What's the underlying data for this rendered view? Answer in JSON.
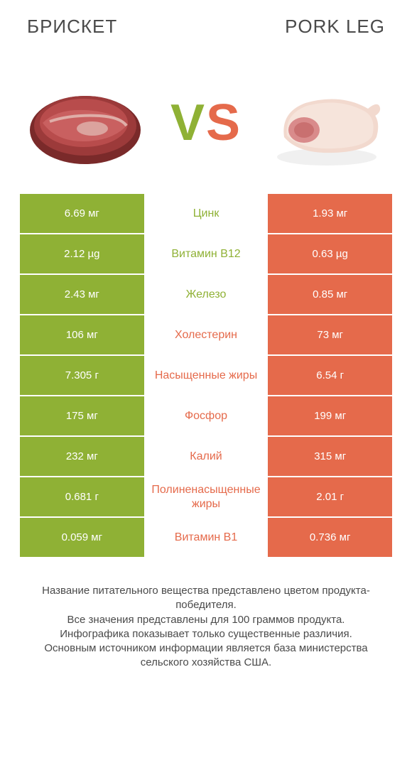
{
  "colors": {
    "green": "#8fb135",
    "orange": "#e56a4b",
    "white": "#ffffff",
    "text": "#4a4a4a"
  },
  "header": {
    "left": "БРИСКЕТ",
    "right": "PORK LEG"
  },
  "vs": {
    "v": "V",
    "s": "S"
  },
  "rows": [
    {
      "left": "6.69 мг",
      "label": "Цинк",
      "right": "1.93 мг",
      "winner": "left"
    },
    {
      "left": "2.12 µg",
      "label": "Витамин B12",
      "right": "0.63 µg",
      "winner": "left"
    },
    {
      "left": "2.43 мг",
      "label": "Железо",
      "right": "0.85 мг",
      "winner": "left"
    },
    {
      "left": "106 мг",
      "label": "Холестерин",
      "right": "73 мг",
      "winner": "right"
    },
    {
      "left": "7.305 г",
      "label": "Насыщенные жиры",
      "right": "6.54 г",
      "winner": "right"
    },
    {
      "left": "175 мг",
      "label": "Фосфор",
      "right": "199 мг",
      "winner": "right"
    },
    {
      "left": "232 мг",
      "label": "Калий",
      "right": "315 мг",
      "winner": "right"
    },
    {
      "left": "0.681 г",
      "label": "Полиненасыщенные жиры",
      "right": "2.01 г",
      "winner": "right"
    },
    {
      "left": "0.059 мг",
      "label": "Витамин B1",
      "right": "0.736 мг",
      "winner": "right"
    }
  ],
  "footnote": "Название питательного вещества представлено цветом продукта-победителя.\nВсе значения представлены для 100 граммов продукта.\nИнфографика показывает только существенные различия.\nОсновным источником информации является база министерства сельского хозяйства США."
}
